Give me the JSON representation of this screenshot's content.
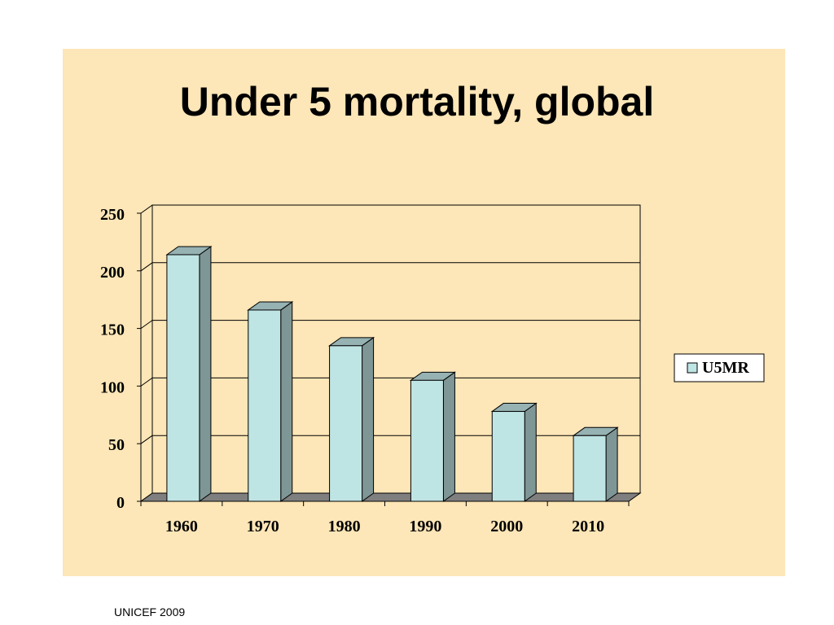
{
  "slide": {
    "title": "Under 5 mortality, global",
    "footer": "UNICEF 2009"
  },
  "colors": {
    "panel_bg": "#fde6b7",
    "bar_front": "#bfe4e4",
    "bar_side": "#7f9696",
    "bar_top": "#96b2b2",
    "floor": "#7f7f7f"
  },
  "chart_data": {
    "type": "bar",
    "title": "",
    "xlabel": "",
    "ylabel": "",
    "categories": [
      "1960",
      "1970",
      "1980",
      "1990",
      "2000",
      "2010"
    ],
    "series": [
      {
        "name": "U5MR",
        "values": [
          214,
          166,
          135,
          105,
          78,
          57
        ]
      }
    ],
    "ylim": [
      0,
      250
    ],
    "yticks": [
      0,
      50,
      100,
      150,
      200,
      250
    ],
    "grid": true,
    "style": "3d",
    "legend": "right"
  }
}
